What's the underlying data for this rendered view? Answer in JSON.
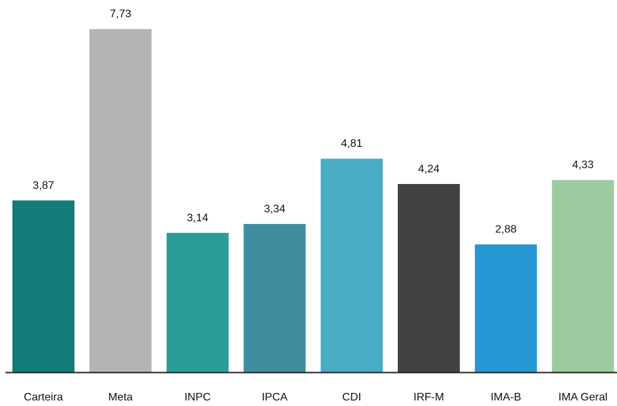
{
  "chart_data": {
    "type": "bar",
    "title": "",
    "xlabel": "",
    "ylabel": "",
    "ylim": [
      0,
      8
    ],
    "grid": false,
    "legend": "none",
    "categories": [
      "Carteira",
      "Meta",
      "INPC",
      "IPCA",
      "CDI",
      "IRF-M",
      "IMA-B",
      "IMA Geral"
    ],
    "values": [
      3.87,
      7.73,
      3.14,
      3.34,
      4.81,
      4.24,
      2.88,
      4.33
    ],
    "value_labels": [
      "3,87",
      "7,73",
      "3,14",
      "3,34",
      "4,81",
      "4,24",
      "2,88",
      "4,33"
    ],
    "colors": [
      "#127c78",
      "#b4b4b6",
      "#2a9d98",
      "#3f8ea0",
      "#4aabc4",
      "#424244",
      "#2797d3",
      "#9dcba0"
    ]
  }
}
